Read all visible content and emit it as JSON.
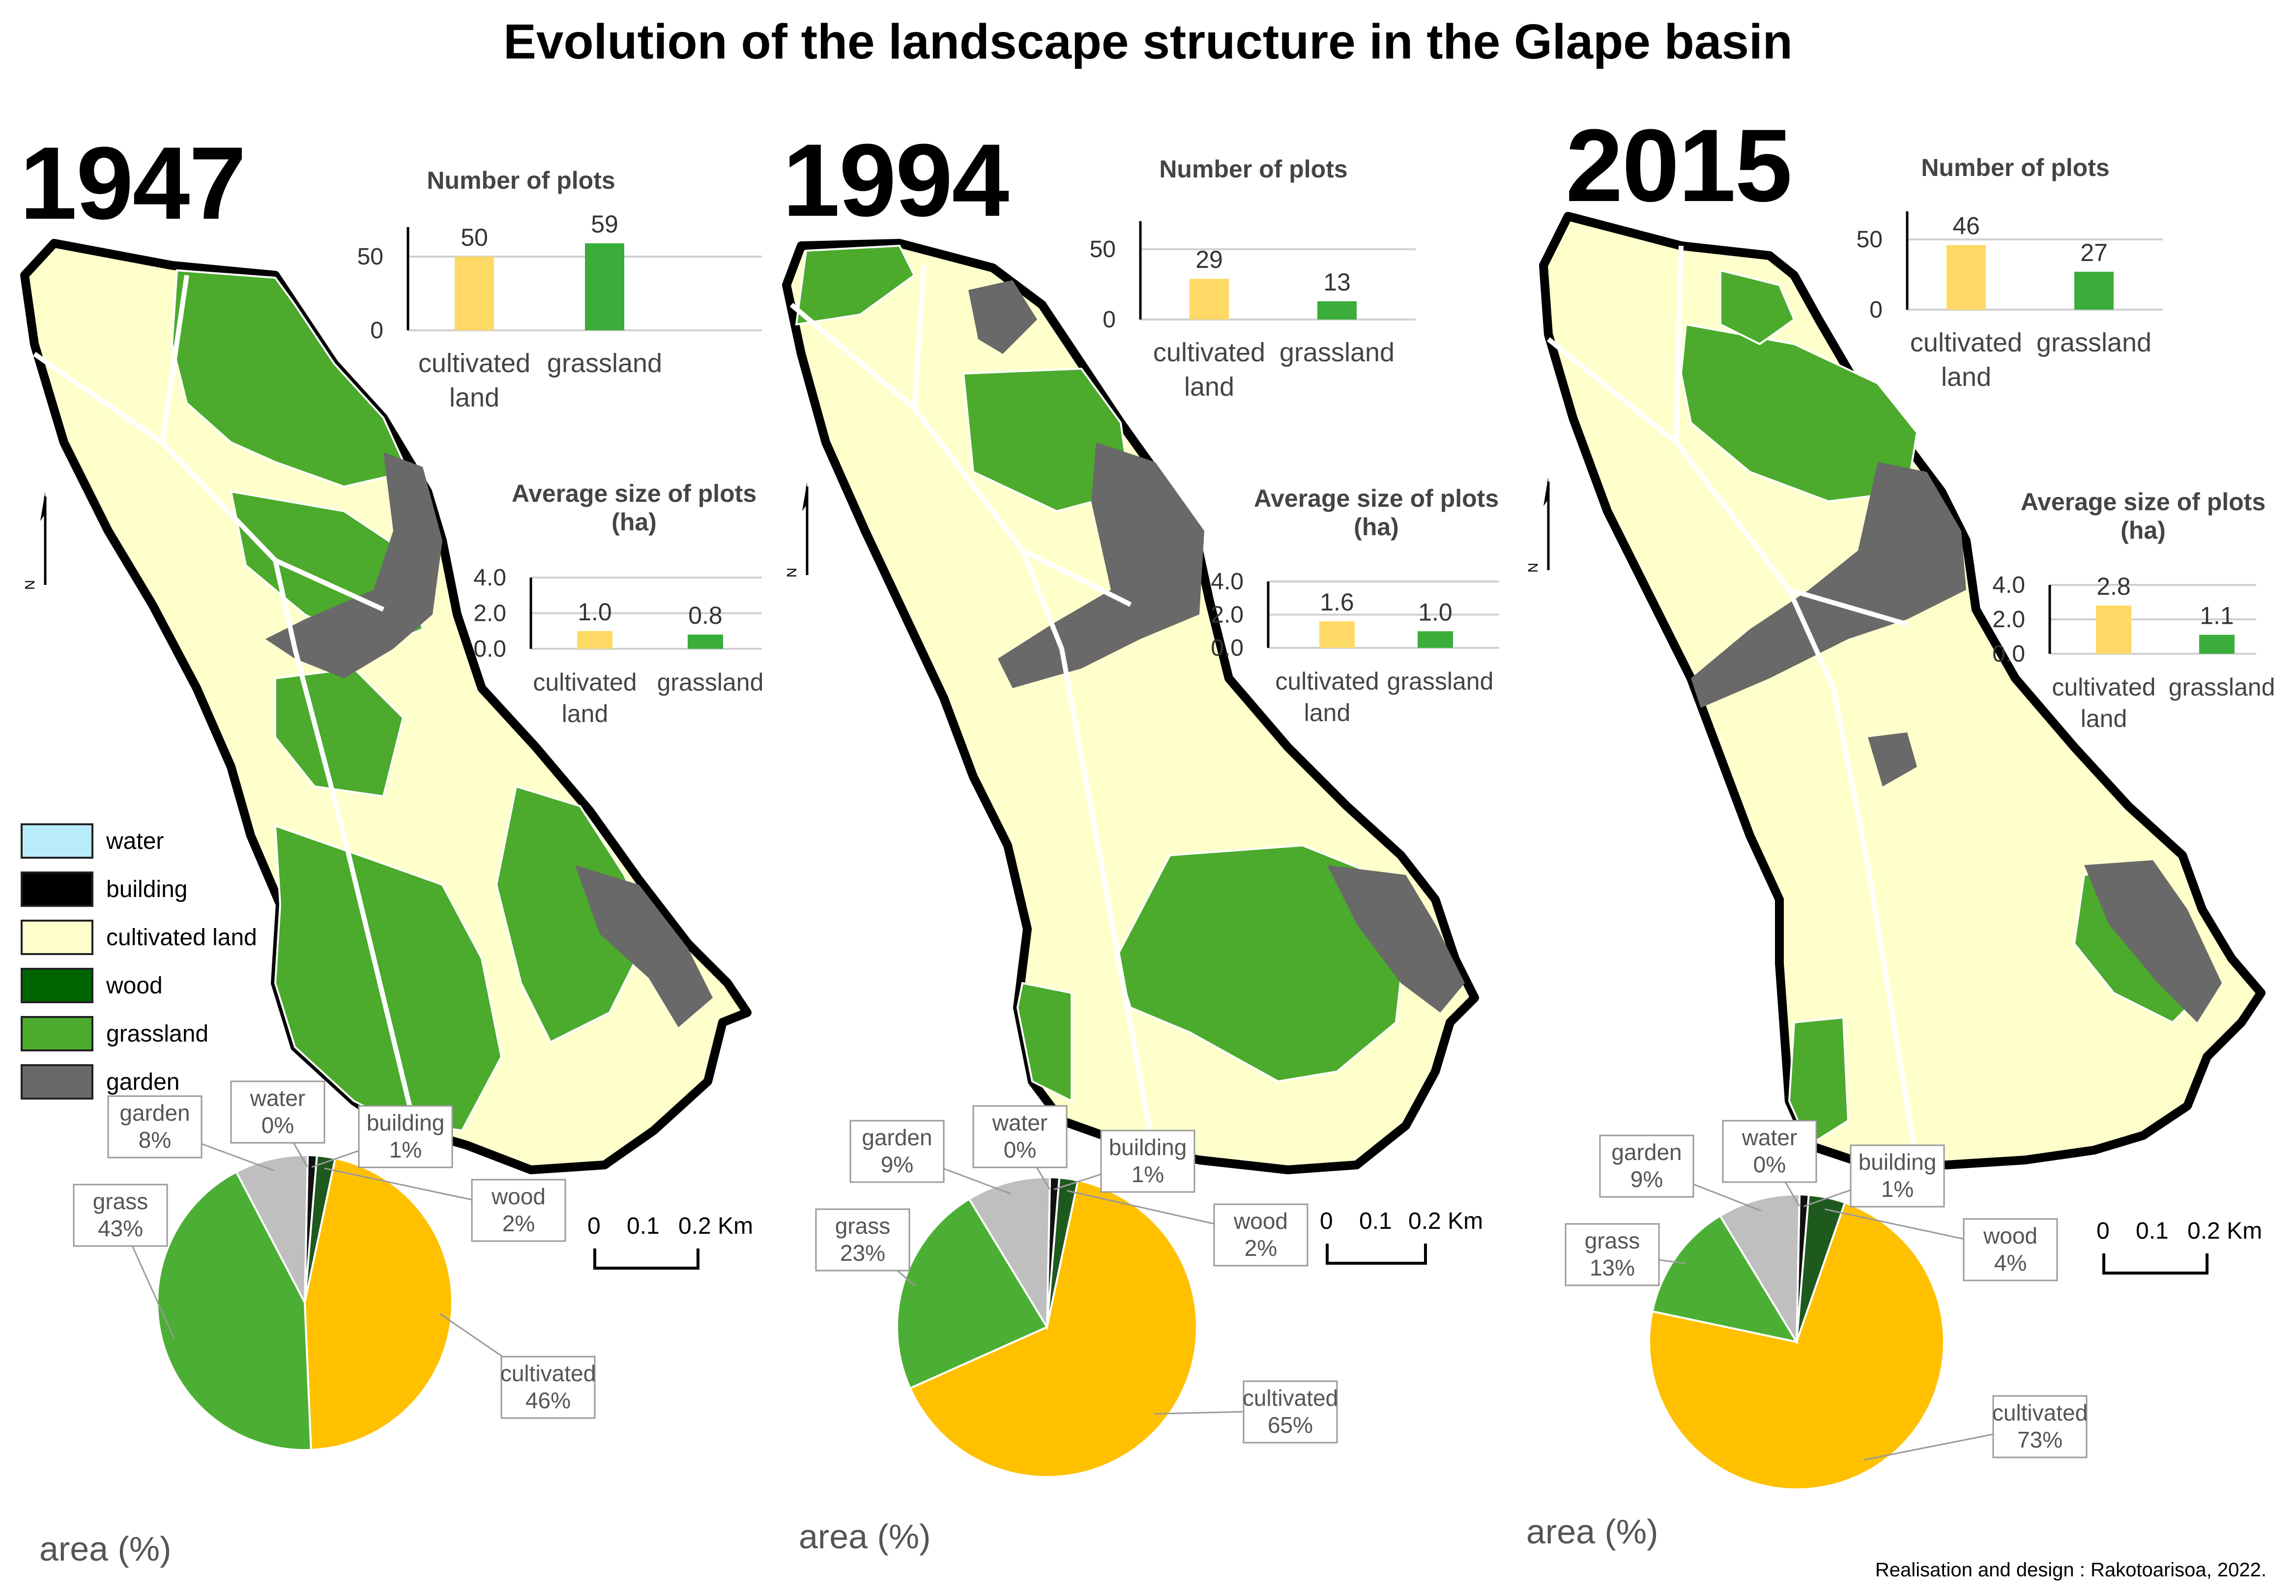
{
  "title": "Evolution of the landscape structure in the Glape basin",
  "credit": "Realisation and design : Rakotoarisoa, 2022.",
  "legend": [
    {
      "label": "water",
      "color": "#b9ecfa"
    },
    {
      "label": "building",
      "color": "#000000"
    },
    {
      "label": "cultivated land",
      "color": "#ffffcc"
    },
    {
      "label": "wood",
      "color": "#006400"
    },
    {
      "label": "grassland",
      "color": "#4caa2c"
    },
    {
      "label": "garden",
      "color": "#696969"
    }
  ],
  "colors": {
    "cultivated_bar": "#ffd966",
    "grassland_bar": "#3aad3a",
    "pie_cultivated": "#ffc000",
    "pie_grass": "#4caf35",
    "pie_garden": "#bfbfbf",
    "pie_wood": "#1e5a1e",
    "pie_building": "#111111",
    "pie_water": "#b9ecfa"
  },
  "scalebar": {
    "labels": [
      "0",
      "0.1",
      "0.2 Km"
    ]
  },
  "north": "N",
  "area_label": "area (%)",
  "chart_titles": {
    "plots": "Number of plots",
    "size": "Average size of plots (ha)"
  },
  "bar_categories": [
    "cultivated land",
    "grassland"
  ],
  "chart_data": [
    {
      "type": "bar",
      "panel": "1947",
      "title": "Number of plots",
      "categories": [
        "cultivated land",
        "grassland"
      ],
      "values": [
        50,
        59
      ],
      "yticks": [
        "0",
        "50"
      ],
      "ylim": [
        0,
        70
      ]
    },
    {
      "type": "bar",
      "panel": "1947",
      "title": "Average size of plots (ha)",
      "categories": [
        "cultivated land",
        "grassland"
      ],
      "values": [
        1.0,
        0.8
      ],
      "value_labels": [
        "1.0",
        "0.8"
      ],
      "yticks": [
        "0.0",
        "2.0",
        "4.0"
      ],
      "ylim": [
        0,
        4.0
      ]
    },
    {
      "type": "pie",
      "panel": "1947",
      "title": "area (%)",
      "slices": [
        {
          "label": "building",
          "pct_label": "1%",
          "value": 1
        },
        {
          "label": "wood",
          "pct_label": "2%",
          "value": 2
        },
        {
          "label": "cultivated",
          "pct_label": "46%",
          "value": 46
        },
        {
          "label": "grass",
          "pct_label": "43%",
          "value": 43
        },
        {
          "label": "garden",
          "pct_label": "8%",
          "value": 8
        },
        {
          "label": "water",
          "pct_label": "0%",
          "value": 0
        }
      ]
    },
    {
      "type": "bar",
      "panel": "1994",
      "title": "Number of plots",
      "categories": [
        "cultivated land",
        "grassland"
      ],
      "values": [
        29,
        13
      ],
      "yticks": [
        "0",
        "50"
      ],
      "ylim": [
        0,
        70
      ]
    },
    {
      "type": "bar",
      "panel": "1994",
      "title": "Average size of plots (ha)",
      "categories": [
        "cultivated land",
        "grassland"
      ],
      "values": [
        1.6,
        1.0
      ],
      "value_labels": [
        "1.6",
        "1.0"
      ],
      "yticks": [
        "0.0",
        "2.0",
        "4.0"
      ],
      "ylim": [
        0,
        4.0
      ]
    },
    {
      "type": "pie",
      "panel": "1994",
      "title": "area (%)",
      "slices": [
        {
          "label": "building",
          "pct_label": "1%",
          "value": 1
        },
        {
          "label": "wood",
          "pct_label": "2%",
          "value": 2
        },
        {
          "label": "cultivated",
          "pct_label": "65%",
          "value": 65
        },
        {
          "label": "grass",
          "pct_label": "23%",
          "value": 23
        },
        {
          "label": "garden",
          "pct_label": "9%",
          "value": 9
        },
        {
          "label": "water",
          "pct_label": "0%",
          "value": 0
        }
      ]
    },
    {
      "type": "bar",
      "panel": "2015",
      "title": "Number of plots",
      "categories": [
        "cultivated land",
        "grassland"
      ],
      "values": [
        46,
        27
      ],
      "yticks": [
        "0",
        "50"
      ],
      "ylim": [
        0,
        70
      ]
    },
    {
      "type": "bar",
      "panel": "2015",
      "title": "Average size of plots (ha)",
      "categories": [
        "cultivated land",
        "grassland"
      ],
      "values": [
        2.8,
        1.1
      ],
      "value_labels": [
        "2.8",
        "1.1"
      ],
      "yticks": [
        "0.0",
        "2.0",
        "4.0"
      ],
      "ylim": [
        0,
        4.0
      ]
    },
    {
      "type": "pie",
      "panel": "2015",
      "title": "area (%)",
      "slices": [
        {
          "label": "building",
          "pct_label": "1%",
          "value": 1
        },
        {
          "label": "wood",
          "pct_label": "4%",
          "value": 4
        },
        {
          "label": "cultivated",
          "pct_label": "73%",
          "value": 73
        },
        {
          "label": "grass",
          "pct_label": "13%",
          "value": 13
        },
        {
          "label": "garden",
          "pct_label": "9%",
          "value": 9
        },
        {
          "label": "water",
          "pct_label": "0%",
          "value": 0
        }
      ]
    }
  ],
  "panels": [
    {
      "year": "1947"
    },
    {
      "year": "1994"
    },
    {
      "year": "2015"
    }
  ]
}
